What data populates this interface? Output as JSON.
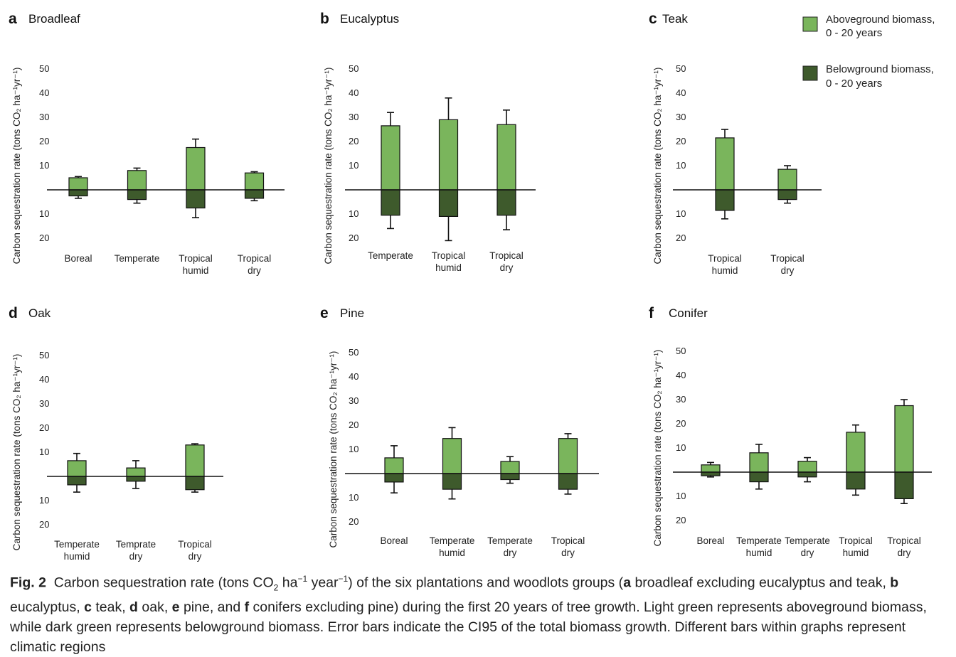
{
  "legend": {
    "items": [
      {
        "label_line1": "Aboveground biomass,",
        "label_line2": "0 - 20 years",
        "color": "#7ab55c"
      },
      {
        "label_line1": "Belowground biomass,",
        "label_line2": "0 - 20 years",
        "color": "#3e5a2c"
      }
    ]
  },
  "chart_data": [
    {
      "type": "bar",
      "letter": "a",
      "title": "Broadleaf",
      "ylabel": "Carbon sequestration rate (tons CO₂ ha⁻¹yr⁻¹)",
      "yticks_above": [
        "50",
        "40",
        "30",
        "20",
        "10"
      ],
      "yticks_below": [
        "10",
        "20"
      ],
      "ylim": [
        -20,
        50
      ],
      "categories": [
        [
          "Boreal"
        ],
        [
          "Temperate"
        ],
        [
          "Tropical",
          "humid"
        ],
        [
          "Tropical",
          "dry"
        ]
      ],
      "series": [
        {
          "name": "Aboveground biomass, 0 - 20 years",
          "values": [
            5,
            8,
            17.5,
            7
          ]
        },
        {
          "name": "Belowground biomass, 0 - 20 years",
          "values": [
            -2.5,
            -4,
            -7.5,
            -3.5
          ]
        }
      ],
      "error_upper": [
        5.5,
        9,
        21,
        7.5
      ],
      "error_lower": [
        -3.5,
        -5.5,
        -11.5,
        -4.5
      ]
    },
    {
      "type": "bar",
      "letter": "b",
      "title": "Eucalyptus",
      "ylabel": "Carbon sequestration rate (tons CO₂ ha⁻¹yr⁻¹)",
      "yticks_above": [
        "50",
        "40",
        "30",
        "20",
        "10"
      ],
      "yticks_below": [
        "10",
        "20"
      ],
      "ylim": [
        -20,
        50
      ],
      "categories": [
        [
          "Temperate"
        ],
        [
          "Tropical",
          "humid"
        ],
        [
          "Tropical",
          "dry"
        ]
      ],
      "series": [
        {
          "name": "Aboveground biomass, 0 - 20 years",
          "values": [
            26.5,
            29,
            27
          ]
        },
        {
          "name": "Belowground biomass, 0 - 20 years",
          "values": [
            -10.5,
            -11,
            -10.5
          ]
        }
      ],
      "error_upper": [
        32,
        38,
        33
      ],
      "error_lower": [
        -16,
        -21,
        -16.5
      ]
    },
    {
      "type": "bar",
      "letter": "c",
      "title": "Teak",
      "ylabel": "Carbon sequestration rate (tons CO₂ ha⁻¹yr⁻¹)",
      "yticks_above": [
        "50",
        "40",
        "30",
        "20",
        "10"
      ],
      "yticks_below": [
        "10",
        "20"
      ],
      "ylim": [
        -20,
        50
      ],
      "categories": [
        [
          "Tropical",
          "humid"
        ],
        [
          "Tropical",
          "dry"
        ]
      ],
      "series": [
        {
          "name": "Aboveground biomass, 0 - 20 years",
          "values": [
            21.5,
            8.5
          ]
        },
        {
          "name": "Belowground biomass, 0 - 20 years",
          "values": [
            -8.5,
            -4
          ]
        }
      ],
      "error_upper": [
        25,
        10
      ],
      "error_lower": [
        -12,
        -5.5
      ]
    },
    {
      "type": "bar",
      "letter": "d",
      "title": "Oak",
      "ylabel": "Carbon sequestration rate (tons CO₂ ha⁻¹yr⁻¹)",
      "yticks_above": [
        "50",
        "40",
        "30",
        "20",
        "10"
      ],
      "yticks_below": [
        "10",
        "20"
      ],
      "ylim": [
        -20,
        50
      ],
      "categories": [
        [
          "Temperate",
          "humid"
        ],
        [
          "Temprate",
          "dry"
        ],
        [
          "Tropical",
          "dry"
        ]
      ],
      "series": [
        {
          "name": "Aboveground biomass, 0 - 20 years",
          "values": [
            6.5,
            3.5,
            13
          ]
        },
        {
          "name": "Belowground biomass, 0 - 20 years",
          "values": [
            -3.5,
            -2,
            -5.5
          ]
        }
      ],
      "error_upper": [
        9.5,
        6.5,
        13.5
      ],
      "error_lower": [
        -6.5,
        -5,
        -6.5
      ]
    },
    {
      "type": "bar",
      "letter": "e",
      "title": "Pine",
      "ylabel": "Carbon sequestration rate (tons CO₂ ha⁻¹yr⁻¹)",
      "yticks_above": [
        "50",
        "40",
        "30",
        "20",
        "10"
      ],
      "yticks_below": [
        "10",
        "20"
      ],
      "ylim": [
        -20,
        50
      ],
      "categories": [
        [
          "Boreal"
        ],
        [
          "Temperate",
          "humid"
        ],
        [
          "Temperate",
          "dry"
        ],
        [
          "Tropical",
          "dry"
        ]
      ],
      "series": [
        {
          "name": "Aboveground biomass, 0 - 20 years",
          "values": [
            6.5,
            14.5,
            5,
            14.5
          ]
        },
        {
          "name": "Belowground biomass, 0 - 20 years",
          "values": [
            -3.5,
            -6.5,
            -2.5,
            -6.5
          ]
        }
      ],
      "error_upper": [
        11.5,
        19,
        7,
        16.5
      ],
      "error_lower": [
        -8,
        -10.5,
        -4,
        -8.5
      ]
    },
    {
      "type": "bar",
      "letter": "f",
      "title": "Conifer",
      "ylabel": "Carbon sequestration rate (tons CO₂ ha⁻¹yr⁻¹)",
      "yticks_above": [
        "50",
        "40",
        "30",
        "20",
        "10"
      ],
      "yticks_below": [
        "10",
        "20"
      ],
      "ylim": [
        -20,
        50
      ],
      "categories": [
        [
          "Boreal"
        ],
        [
          "Temperate",
          "humid"
        ],
        [
          "Temperate",
          "dry"
        ],
        [
          "Tropical",
          "humid"
        ],
        [
          "Tropical",
          "dry"
        ]
      ],
      "series": [
        {
          "name": "Aboveground biomass, 0 - 20 years",
          "values": [
            3,
            8,
            4.5,
            16.5,
            27.5
          ]
        },
        {
          "name": "Belowground biomass, 0 - 20 years",
          "values": [
            -1.5,
            -4,
            -2,
            -7,
            -11
          ]
        }
      ],
      "error_upper": [
        4,
        11.5,
        6,
        19.5,
        30
      ],
      "error_lower": [
        -2,
        -7,
        -4,
        -9.5,
        -13
      ]
    }
  ],
  "caption": {
    "fig_label": "Fig. 2",
    "text_1": "Carbon sequestration rate (tons CO",
    "sub_2": "2",
    "text_2": " ha",
    "sup_1": "−1",
    "text_3": " year",
    "sup_2": "−1",
    "text_4": ") of the six plantations and woodlots groups (",
    "a": "a",
    "a_desc": " broadleaf excluding eucalyptus and teak, ",
    "b": "b",
    "b_desc": " eucalyptus, ",
    "c": "c",
    "c_desc": " teak, ",
    "d": "d",
    "d_desc": " oak, ",
    "e": "e",
    "e_desc": " pine, and ",
    "f": "f",
    "f_desc": " conifers excluding pine) during the first 20 years of tree growth. Light green represents aboveground biomass, while dark green represents belowground biomass. Error bars indicate the CI95 of the total biomass growth. Different bars within graphs represent climatic regions"
  }
}
